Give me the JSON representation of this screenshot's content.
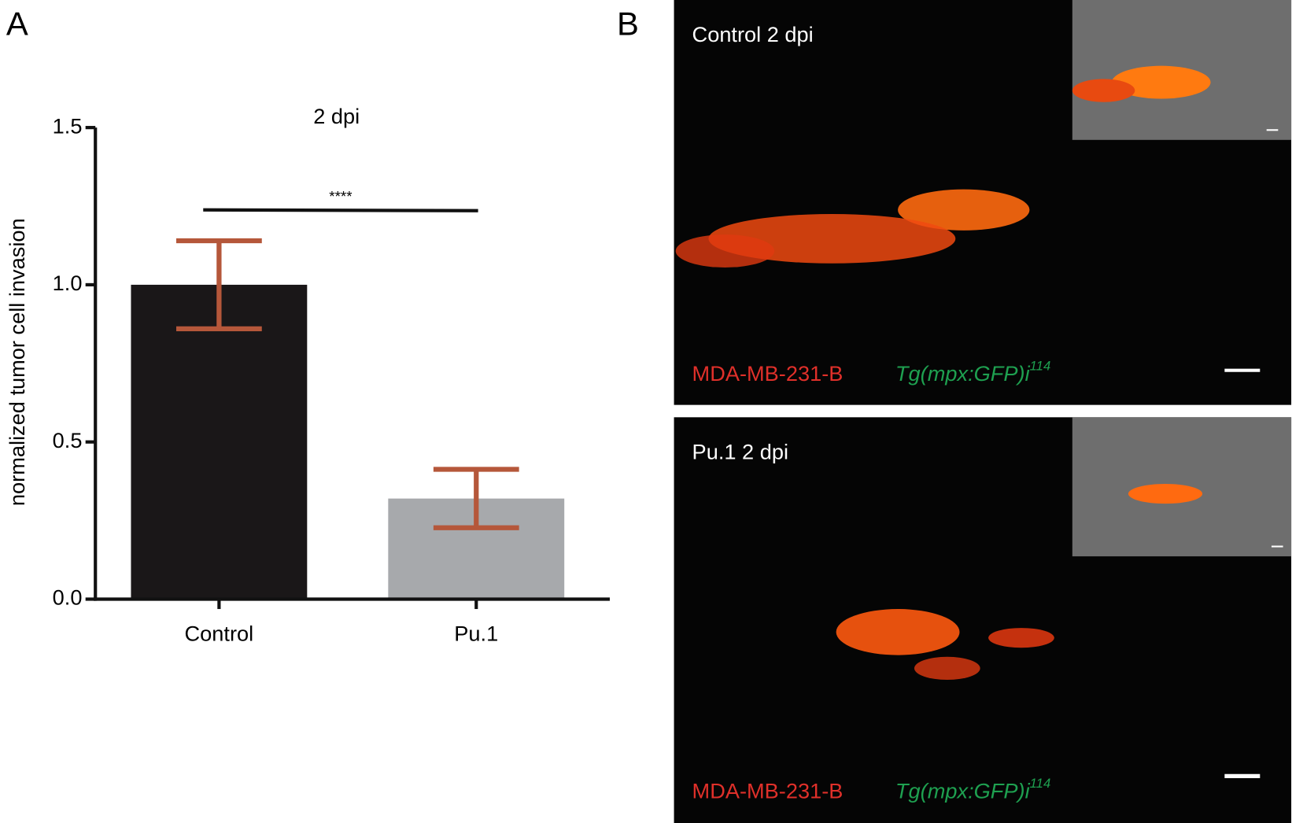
{
  "chart_data": {
    "type": "bar",
    "panel_label": "A",
    "title": "2 dpi",
    "y_label": "normalized tumor cell invasion",
    "categories": [
      "Control",
      "Pu.1"
    ],
    "values": [
      1.0,
      0.32
    ],
    "errors": [
      0.14,
      0.093
    ],
    "colors": [
      "#1a1718",
      "#a7a9ac"
    ],
    "error_color": "#b5573a",
    "ylim": [
      0,
      1.5
    ],
    "yticks": [
      {
        "value": 0,
        "label": "0.0"
      },
      {
        "value": 0.5,
        "label": "0.5"
      },
      {
        "value": 1,
        "label": "1.0"
      },
      {
        "value": 1.5,
        "label": "1.5"
      }
    ],
    "significance": "****"
  },
  "image_panel": {
    "panel_label": "B",
    "images": [
      {
        "label": "Control 2 dpi",
        "red_label": "MDA-MB-231-B",
        "green_label": "Tg(mpx:GFP)i",
        "green_sup": "114"
      },
      {
        "label": "Pu.1 2 dpi",
        "red_label": "MDA-MB-231-B",
        "green_label": "Tg(mpx:GFP)i",
        "green_sup": "114"
      }
    ]
  }
}
